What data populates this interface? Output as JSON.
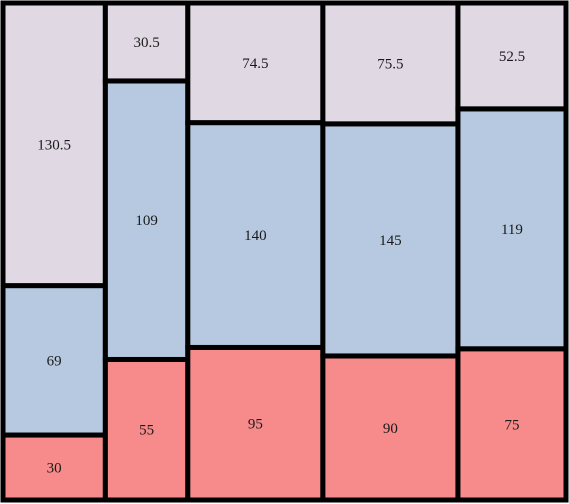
{
  "chart_data": {
    "type": "mosaic",
    "title": "",
    "xlabel": "",
    "ylabel": "",
    "columns": [
      {
        "weight": 0.72,
        "segments": [
          30,
          69,
          130.5
        ]
      },
      {
        "weight": 0.58,
        "segments": [
          55,
          109,
          30.5
        ]
      },
      {
        "weight": 0.95,
        "segments": [
          95,
          140,
          74.5
        ]
      },
      {
        "weight": 0.95,
        "segments": [
          90,
          145,
          75.5
        ]
      },
      {
        "weight": 0.76,
        "segments": [
          75,
          119,
          52.5
        ]
      }
    ],
    "series_colors": [
      "#f78a8a",
      "#b6c9e0",
      "#e0d9e4"
    ],
    "border_color": "#000000"
  }
}
